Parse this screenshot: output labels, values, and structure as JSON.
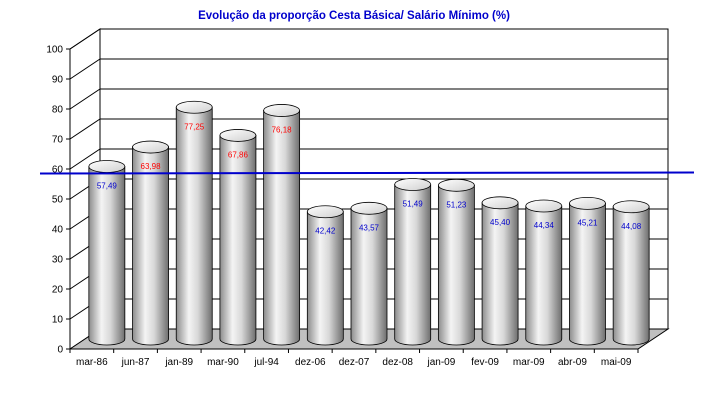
{
  "chart_data": {
    "type": "bar",
    "style": "3d-cylinder",
    "title": "Evolução da proporção Cesta Básica/ Salário Mínimo (%)",
    "xlabel": "",
    "ylabel": "",
    "ylim": [
      0,
      100
    ],
    "yticks": [
      "0",
      "10",
      "20",
      "30",
      "40",
      "50",
      "60",
      "70",
      "80",
      "90",
      "100"
    ],
    "grid": true,
    "categories": [
      "mar-86",
      "jun-87",
      "jan-89",
      "mar-90",
      "jul-94",
      "dez-06",
      "dez-07",
      "dez-08",
      "jan-09",
      "fev-09",
      "mar-09",
      "abr-09",
      "mai-09"
    ],
    "values": [
      57.49,
      63.98,
      77.25,
      67.86,
      76.18,
      42.42,
      43.57,
      51.49,
      51.23,
      45.4,
      44.34,
      45.21,
      44.08
    ],
    "data_labels": [
      "57,49",
      "63,98",
      "77,25",
      "67,86",
      "76,18",
      "42,42",
      "43,57",
      "51,49",
      "51,23",
      "45,40",
      "44,34",
      "45,21",
      "44,08"
    ],
    "label_colors": [
      "#0000cc",
      "#ff0000",
      "#ff0000",
      "#ff0000",
      "#ff0000",
      "#0000cc",
      "#0000cc",
      "#0000cc",
      "#0000cc",
      "#0000cc",
      "#0000cc",
      "#0000cc",
      "#0000cc"
    ],
    "reference_line": {
      "value": 58.5,
      "color": "#0000cc"
    },
    "colors": {
      "title": "#0000cc",
      "wall": "#ffffff",
      "floor": "#c0c0c0",
      "bar": "#d0d0d0"
    }
  }
}
